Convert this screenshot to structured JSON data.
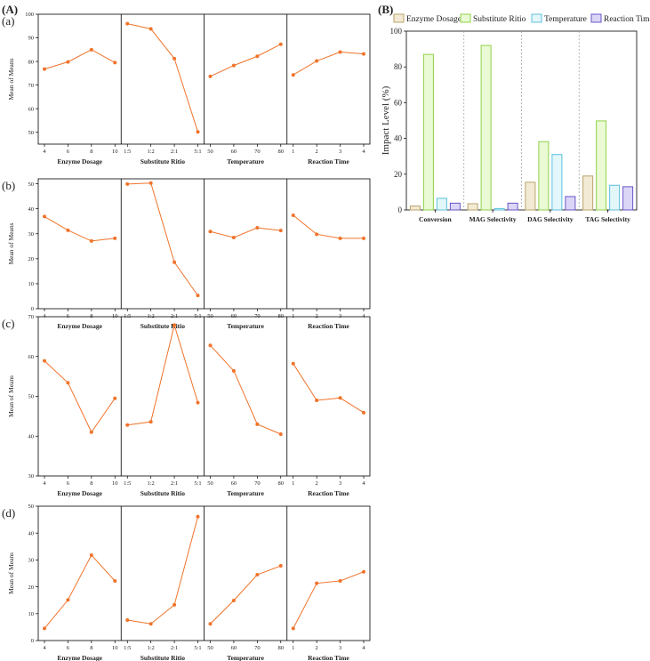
{
  "panel_labels": {
    "A": "(A)",
    "B": "(B)"
  },
  "chart_data": [
    {
      "type": "line",
      "panel": "(a)",
      "ylabel": "Mean of Means",
      "ylim": [
        45,
        100
      ],
      "yticks": [
        "50",
        "60",
        "70",
        "80",
        "90",
        "100"
      ],
      "facets": [
        {
          "xlabel": "Enzyme Dosage",
          "x": [
            "4",
            "6",
            "8",
            "10"
          ],
          "values": [
            76.8,
            79.8,
            85.0,
            79.5
          ]
        },
        {
          "xlabel": "Substitute Ritio",
          "x": [
            "1:5",
            "1:2",
            "2:1",
            "5:1"
          ],
          "values": [
            96.0,
            93.8,
            81.2,
            50.2
          ]
        },
        {
          "xlabel": "Temperature",
          "x": [
            "50",
            "60",
            "70",
            "80"
          ],
          "values": [
            73.7,
            78.3,
            82.2,
            87.3
          ]
        },
        {
          "xlabel": "Reaction Time",
          "x": [
            "1",
            "2",
            "3",
            "4"
          ],
          "values": [
            74.3,
            80.2,
            84.0,
            83.2
          ]
        }
      ]
    },
    {
      "type": "line",
      "panel": "(b)",
      "ylabel": "Mean of Means",
      "ylim": [
        0,
        52
      ],
      "yticks": [
        "0",
        "10",
        "20",
        "30",
        "40",
        "50"
      ],
      "facets": [
        {
          "xlabel": "Enzyme Dosage",
          "x": [
            "4",
            "6",
            "8",
            "10"
          ],
          "values": [
            36.9,
            31.4,
            27.1,
            28.2
          ]
        },
        {
          "xlabel": "Substitute Ritio",
          "x": [
            "1:5",
            "1:2",
            "2:1",
            "5:1"
          ],
          "values": [
            49.9,
            50.3,
            18.6,
            5.3
          ]
        },
        {
          "xlabel": "Temperature",
          "x": [
            "50",
            "60",
            "70",
            "80"
          ],
          "values": [
            30.9,
            28.5,
            32.4,
            31.3
          ]
        },
        {
          "xlabel": "Reaction Time",
          "x": [
            "1",
            "2",
            "3",
            "4"
          ],
          "values": [
            37.4,
            29.8,
            28.2,
            28.2
          ]
        }
      ]
    },
    {
      "type": "line",
      "panel": "(c)",
      "ylabel": "Mean of Means",
      "ylim": [
        30,
        70
      ],
      "yticks": [
        "30",
        "40",
        "50",
        "60",
        "70"
      ],
      "facets": [
        {
          "xlabel": "Enzyme Dosage",
          "x": [
            "4",
            "6",
            "8",
            "10"
          ],
          "values": [
            58.9,
            53.4,
            41.0,
            49.5
          ]
        },
        {
          "xlabel": "Substitute Ritio",
          "x": [
            "1:5",
            "1:2",
            "2:1",
            "5:1"
          ],
          "values": [
            42.8,
            43.6,
            67.9,
            48.4
          ]
        },
        {
          "xlabel": "Temperature",
          "x": [
            "50",
            "60",
            "70",
            "80"
          ],
          "values": [
            62.8,
            56.4,
            43.0,
            40.5
          ]
        },
        {
          "xlabel": "Reaction Time",
          "x": [
            "1",
            "2",
            "3",
            "4"
          ],
          "values": [
            58.2,
            49.0,
            49.6,
            45.9
          ]
        }
      ]
    },
    {
      "type": "line",
      "panel": "(d)",
      "ylabel": "Mean of Means",
      "ylim": [
        0,
        50
      ],
      "yticks": [
        "0",
        "10",
        "20",
        "30",
        "40",
        "50"
      ],
      "facets": [
        {
          "xlabel": "Enzyme Dosage",
          "x": [
            "4",
            "6",
            "8",
            "10"
          ],
          "values": [
            4.5,
            15.1,
            31.8,
            22.2
          ]
        },
        {
          "xlabel": "Substitute Ritio",
          "x": [
            "1:5",
            "1:2",
            "2:1",
            "5:1"
          ],
          "values": [
            7.6,
            6.2,
            13.3,
            46.1
          ]
        },
        {
          "xlabel": "Temperature",
          "x": [
            "50",
            "60",
            "70",
            "80"
          ],
          "values": [
            6.2,
            14.9,
            24.5,
            27.8
          ]
        },
        {
          "xlabel": "Reaction Time",
          "x": [
            "1",
            "2",
            "3",
            "4"
          ],
          "values": [
            4.5,
            21.3,
            22.2,
            25.6
          ]
        }
      ]
    },
    {
      "type": "bar",
      "panel": "(B)",
      "ylabel": "Impact Level (%)",
      "ylim": [
        0,
        100
      ],
      "yticks": [
        "0",
        "20",
        "40",
        "60",
        "80",
        "100"
      ],
      "categories": [
        "Conversion",
        "MAG Selectivity",
        "DAG Selectivity",
        "TAG Selectivity"
      ],
      "legend_position": "top",
      "series": [
        {
          "name": "Enzyme Dosage",
          "values": [
            2.2,
            3.5,
            15.5,
            19.0
          ],
          "fill": "#f3ead6",
          "stroke": "#b9a46a"
        },
        {
          "name": "Substitute Ritio",
          "values": [
            87.0,
            92.0,
            38.2,
            49.8
          ],
          "fill": "#eafad4",
          "stroke": "#8fd24a"
        },
        {
          "name": "Temperature",
          "values": [
            6.5,
            0.8,
            31.0,
            13.8
          ],
          "fill": "#e3f7fb",
          "stroke": "#5cc0dc"
        },
        {
          "name": "Reaction Time",
          "values": [
            3.8,
            3.8,
            7.5,
            13.0
          ],
          "fill": "#dcd6f6",
          "stroke": "#6a55c8"
        }
      ]
    }
  ]
}
